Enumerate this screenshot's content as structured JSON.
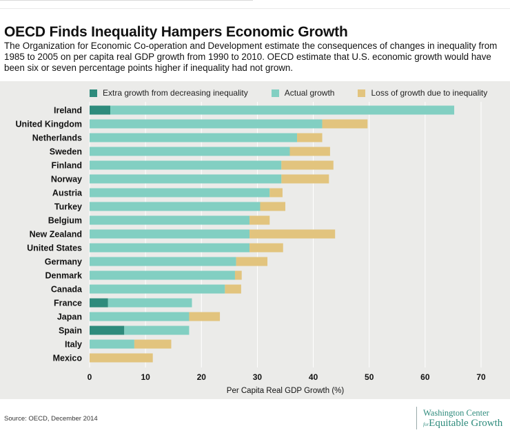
{
  "title": "OECD Finds Inequality Hampers Economic Growth",
  "subtitle": "The Organization for Economic Co-operation and Development estimate the consequences of changes in inequality from 1985 to 2005 on per capita real GDP growth from 1990 to 2010. OECD estimate that U.S. economic growth would have been six or seven percentage points higher if inequality had not grown.",
  "source": "Source: OECD, December 2014",
  "logo": {
    "line1": "Washington Center",
    "line2_prefix": "for",
    "line2": "Equitable Growth"
  },
  "colors": {
    "extra": "#2e8b7c",
    "actual": "#82cfc2",
    "loss": "#e2c47e",
    "background": "#ebebe9",
    "grid": "#ffffff"
  },
  "chart_data": {
    "type": "bar",
    "orientation": "horizontal",
    "stacked": true,
    "title": "",
    "xlabel": "Per Capita Real GDP Growth (%)",
    "ylabel": "",
    "xlim": [
      0,
      70
    ],
    "xticks": [
      0,
      10,
      20,
      30,
      40,
      50,
      60,
      70
    ],
    "grid": true,
    "legend_position": "top",
    "categories": [
      "Ireland",
      "United Kingdom",
      "Netherlands",
      "Sweden",
      "Finland",
      "Norway",
      "Austria",
      "Turkey",
      "Belgium",
      "New Zealand",
      "United States",
      "Germany",
      "Denmark",
      "Canada",
      "France",
      "Japan",
      "Spain",
      "Italy",
      "Mexico"
    ],
    "series": [
      {
        "name": "Extra growth from decreasing inequality",
        "color": "#2e8b7c",
        "values": [
          3.7,
          0,
          0,
          0,
          0,
          0,
          0,
          0,
          0,
          0,
          0,
          0,
          0,
          0,
          3.3,
          0,
          6.2,
          0,
          0
        ]
      },
      {
        "name": "Actual growth",
        "color": "#82cfc2",
        "values": [
          61.5,
          41.6,
          37.1,
          35.8,
          34.3,
          34.3,
          32.2,
          30.5,
          28.6,
          28.6,
          28.6,
          26.2,
          26.0,
          24.2,
          15.0,
          17.8,
          11.6,
          8.0,
          0
        ]
      },
      {
        "name": "Loss of growth due to inequality",
        "color": "#e2c47e",
        "values": [
          0,
          8.1,
          4.5,
          7.2,
          9.3,
          8.5,
          2.3,
          4.5,
          3.6,
          15.3,
          6.0,
          5.6,
          1.2,
          2.9,
          0,
          5.5,
          0,
          6.6,
          11.3
        ]
      }
    ]
  }
}
